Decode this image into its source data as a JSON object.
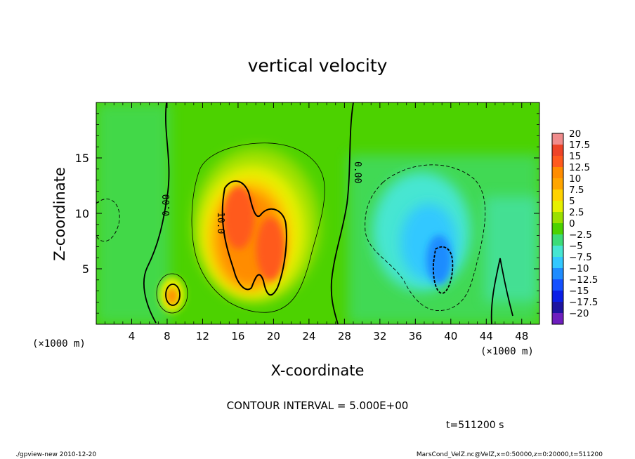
{
  "chart_data": {
    "type": "heatmap",
    "title": "vertical velocity",
    "xlabel": "X-coordinate",
    "ylabel": "Z-coordinate",
    "x_unit": "(×1000 m)",
    "y_unit": "(×1000 m)",
    "xlim": [
      0,
      50
    ],
    "ylim": [
      0,
      20
    ],
    "xticks": [
      "4",
      "8",
      "12",
      "16",
      "20",
      "24",
      "28",
      "32",
      "36",
      "40",
      "44",
      "48"
    ],
    "xtick_values": [
      4,
      8,
      12,
      16,
      20,
      24,
      28,
      32,
      36,
      40,
      44,
      48
    ],
    "yticks": [
      "5",
      "10",
      "15"
    ],
    "ytick_values": [
      5,
      10,
      15
    ],
    "colorbar_labels": [
      "20",
      "17.5",
      "15",
      "12.5",
      "10",
      "7.5",
      "5",
      "2.5",
      "0",
      "−2.5",
      "−5",
      "−7.5",
      "−10",
      "−12.5",
      "−15",
      "−17.5",
      "−20"
    ],
    "colorbar_colors": [
      "#f08c8c",
      "#ee4428",
      "#ff5a1e",
      "#ff8c00",
      "#ffa500",
      "#ffd200",
      "#e6f000",
      "#9be000",
      "#4cd200",
      "#3cdc78",
      "#46e6d2",
      "#32c8ff",
      "#1e8cff",
      "#1450ff",
      "#0a1ee6",
      "#1e14a0",
      "#6e1ebe"
    ],
    "contour_interval": "CONTOUR INTERVAL = 5.000E+00",
    "contour_labels": [
      "0.00",
      "0.00",
      "10.0"
    ],
    "features": [
      {
        "kind": "updraft",
        "x": 18,
        "z": 8,
        "peak": 15
      },
      {
        "kind": "updraft",
        "x": 9,
        "z": 3,
        "peak": 8
      },
      {
        "kind": "downdraft",
        "x": 38.5,
        "z": 6,
        "peak": -10
      }
    ]
  },
  "time_label": "t=511200 s",
  "footer": {
    "left": "./gpview-new  2010-12-20",
    "right": "MarsCond_VelZ.nc@VelZ,x=0:50000,z=0:20000,t=511200"
  }
}
